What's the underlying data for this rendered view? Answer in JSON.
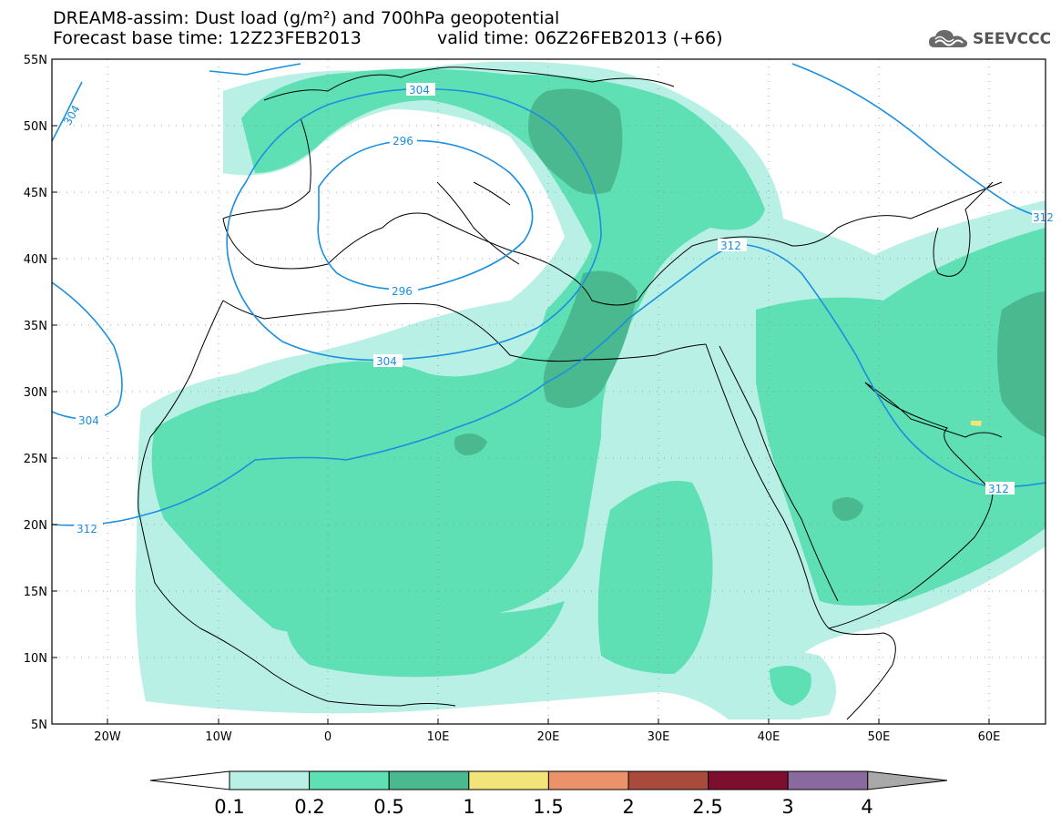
{
  "header": {
    "title": "DREAM8-assim: Dust load (g/m²) and 700hPa geopotential",
    "base_time": "Forecast base time: 12Z23FEB2013",
    "valid_time": "valid time: 06Z26FEB2013 (+66)",
    "logo_text": "SEEVCCC",
    "logo_icon": "cloud-icon"
  },
  "map": {
    "lon_range": [
      -25,
      65
    ],
    "lat_range": [
      5,
      55
    ],
    "lat_labels": [
      "55N",
      "50N",
      "45N",
      "40N",
      "35N",
      "30N",
      "25N",
      "20N",
      "15N",
      "10N",
      "5N"
    ],
    "lon_labels": [
      "20W",
      "10W",
      "0",
      "10E",
      "20E",
      "30E",
      "40E",
      "50E",
      "60E"
    ],
    "contour_labels": [
      "296",
      "296",
      "304",
      "304",
      "304",
      "304",
      "312",
      "312",
      "312",
      "312"
    ],
    "contour_color": "#1a8fe0"
  },
  "legend": {
    "levels": [
      "0.1",
      "0.2",
      "0.5",
      "1",
      "1.5",
      "2",
      "2.5",
      "3",
      "4"
    ],
    "colors": [
      "#b8f0e6",
      "#5fdfb4",
      "#4bb990",
      "#f3e47a",
      "#eb926a",
      "#a94a3c",
      "#7d0e2e",
      "#8a6a9e",
      "#a9a9a9"
    ],
    "under_color": "#ffffff"
  }
}
